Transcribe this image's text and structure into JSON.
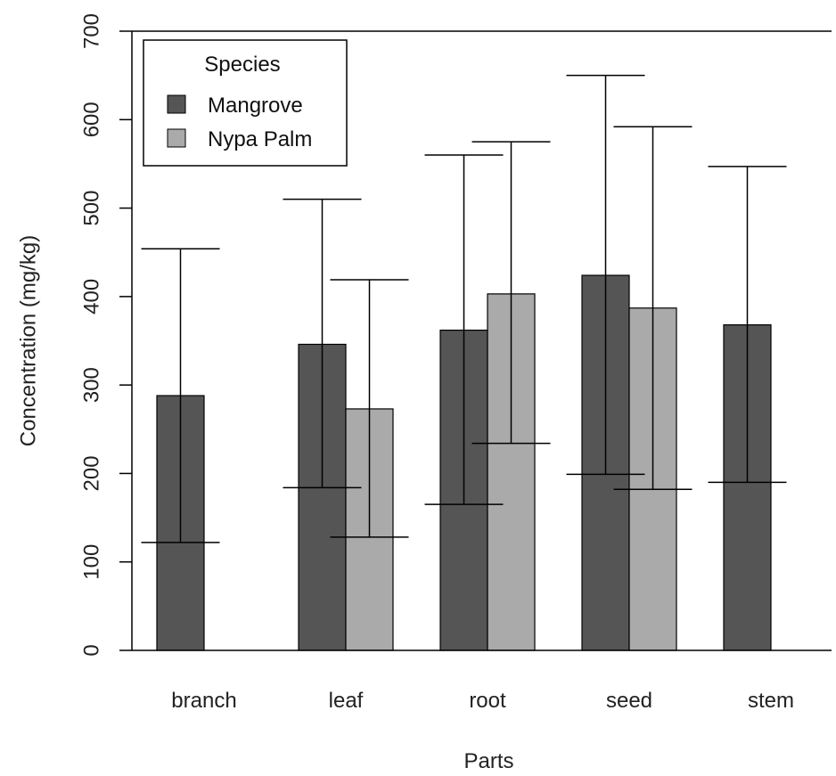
{
  "chart_data": {
    "type": "bar",
    "categories": [
      "branch",
      "leaf",
      "root",
      "seed",
      "stem"
    ],
    "series": [
      {
        "name": "Mangrove",
        "color": "#555555",
        "values": [
          288,
          346,
          362,
          424,
          368
        ],
        "err_low": [
          122,
          184,
          165,
          199,
          190
        ],
        "err_high": [
          454,
          510,
          560,
          650,
          547
        ]
      },
      {
        "name": "Nypa Palm",
        "color": "#aaaaaa",
        "values": [
          null,
          273,
          403,
          387,
          null
        ],
        "err_low": [
          null,
          128,
          234,
          182,
          null
        ],
        "err_high": [
          null,
          419,
          575,
          592,
          null
        ]
      }
    ],
    "xlabel": "Parts",
    "ylabel": "Concentration (mg/kg)",
    "ylim": [
      0,
      700
    ],
    "yticks": [
      0,
      100,
      200,
      300,
      400,
      500,
      600,
      700
    ],
    "legend": {
      "title": "Species",
      "position": "top-left"
    }
  }
}
